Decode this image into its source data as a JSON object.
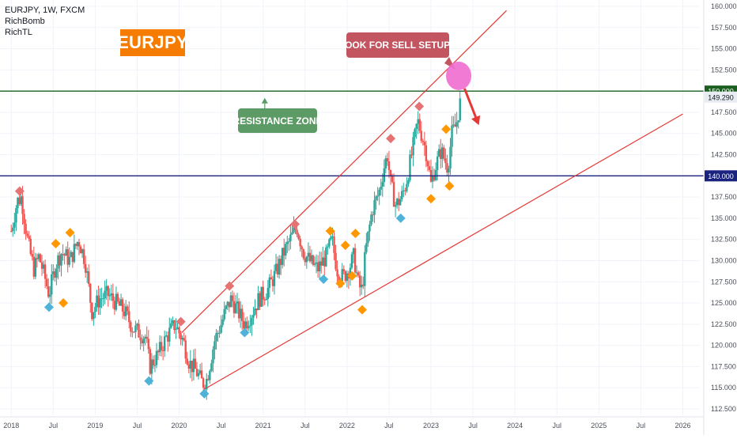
{
  "legend": {
    "symbol_line": "EURJPY, 1W, FXCM",
    "indicators": [
      "RichBomb",
      "RichTL"
    ]
  },
  "badge_title": "EURJPY",
  "callouts": {
    "sell": "LOOK FOR SELL SETUPS",
    "resistance": "RESISTANCE ZONE"
  },
  "colors": {
    "up_candle": "#26a69a",
    "down_candle": "#ef5350",
    "resistance_line": "#1b5e20",
    "support_line": "#1a237e",
    "trendline": "#e53935",
    "badge_bg": "#f57c00",
    "sell_callout": "#c2555f",
    "resistance_callout": "#5c9b65",
    "sell_zone": "#f06cd0",
    "marker_red": "#e57373",
    "marker_orange": "#ff9800",
    "marker_blue": "#4fb3d9"
  },
  "chart_data": {
    "type": "candlestick",
    "symbol": "EURJPY",
    "timeframe": "1W",
    "ylim": [
      112.5,
      160.0
    ],
    "xlim": [
      2017.96,
      2026.25
    ],
    "y_ticks": [
      "160.000",
      "157.500",
      "155.000",
      "152.500",
      "150.000",
      "147.500",
      "145.000",
      "142.500",
      "140.000",
      "137.500",
      "135.000",
      "132.500",
      "130.000",
      "127.500",
      "125.000",
      "122.500",
      "120.000",
      "117.500",
      "115.000",
      "112.500"
    ],
    "y_tick_values": [
      160,
      157.5,
      155,
      152.5,
      150,
      147.5,
      145,
      142.5,
      140,
      137.5,
      135,
      132.5,
      130,
      127.5,
      125,
      122.5,
      120,
      117.5,
      115,
      112.5
    ],
    "x_ticks": [
      {
        "t": 2018.0,
        "label": "2018"
      },
      {
        "t": 2018.5,
        "label": "Jul"
      },
      {
        "t": 2019.0,
        "label": "2019"
      },
      {
        "t": 2019.5,
        "label": "Jul"
      },
      {
        "t": 2020.0,
        "label": "2020"
      },
      {
        "t": 2020.5,
        "label": "Jul"
      },
      {
        "t": 2021.0,
        "label": "2021"
      },
      {
        "t": 2021.5,
        "label": "Jul"
      },
      {
        "t": 2022.0,
        "label": "2022"
      },
      {
        "t": 2022.5,
        "label": "Jul"
      },
      {
        "t": 2023.0,
        "label": "2023"
      },
      {
        "t": 2023.5,
        "label": "Jul"
      },
      {
        "t": 2024.0,
        "label": "2024"
      },
      {
        "t": 2024.5,
        "label": "Jul"
      },
      {
        "t": 2025.0,
        "label": "2025"
      },
      {
        "t": 2025.5,
        "label": "Jul"
      },
      {
        "t": 2026.0,
        "label": "2026"
      }
    ],
    "price_anchors": [
      [
        2018.0,
        133.5
      ],
      [
        2018.07,
        137.0
      ],
      [
        2018.12,
        137.5
      ],
      [
        2018.2,
        132.0
      ],
      [
        2018.27,
        129.0
      ],
      [
        2018.33,
        130.5
      ],
      [
        2018.4,
        128.0
      ],
      [
        2018.45,
        126.0
      ],
      [
        2018.53,
        129.5
      ],
      [
        2018.6,
        131.0
      ],
      [
        2018.7,
        130.0
      ],
      [
        2018.8,
        132.5
      ],
      [
        2018.88,
        130.0
      ],
      [
        2018.96,
        124.0
      ],
      [
        2019.05,
        125.5
      ],
      [
        2019.15,
        126.0
      ],
      [
        2019.25,
        125.0
      ],
      [
        2019.35,
        124.0
      ],
      [
        2019.45,
        122.0
      ],
      [
        2019.6,
        121.0
      ],
      [
        2019.65,
        117.5
      ],
      [
        2019.75,
        119.0
      ],
      [
        2019.85,
        121.0
      ],
      [
        2019.95,
        122.5
      ],
      [
        2020.05,
        120.5
      ],
      [
        2020.12,
        118.0
      ],
      [
        2020.2,
        117.0
      ],
      [
        2020.28,
        115.5
      ],
      [
        2020.33,
        116.0
      ],
      [
        2020.42,
        120.5
      ],
      [
        2020.5,
        122.5
      ],
      [
        2020.55,
        124.0
      ],
      [
        2020.62,
        125.5
      ],
      [
        2020.7,
        124.0
      ],
      [
        2020.78,
        122.5
      ],
      [
        2020.85,
        123.5
      ],
      [
        2020.95,
        125.5
      ],
      [
        2021.05,
        126.5
      ],
      [
        2021.15,
        128.5
      ],
      [
        2021.25,
        131.0
      ],
      [
        2021.35,
        133.0
      ],
      [
        2021.4,
        134.0
      ],
      [
        2021.48,
        131.0
      ],
      [
        2021.55,
        130.0
      ],
      [
        2021.65,
        129.0
      ],
      [
        2021.75,
        130.5
      ],
      [
        2021.82,
        132.5
      ],
      [
        2021.88,
        129.0
      ],
      [
        2021.95,
        128.0
      ],
      [
        2022.02,
        129.0
      ],
      [
        2022.08,
        130.5
      ],
      [
        2022.14,
        127.0
      ],
      [
        2022.18,
        126.5
      ],
      [
        2022.22,
        131.0
      ],
      [
        2022.3,
        136.0
      ],
      [
        2022.38,
        138.0
      ],
      [
        2022.44,
        141.0
      ],
      [
        2022.48,
        142.5
      ],
      [
        2022.52,
        139.0
      ],
      [
        2022.58,
        136.5
      ],
      [
        2022.65,
        137.5
      ],
      [
        2022.7,
        139.0
      ],
      [
        2022.78,
        143.0
      ],
      [
        2022.84,
        146.5
      ],
      [
        2022.9,
        144.5
      ],
      [
        2022.95,
        142.5
      ],
      [
        2023.0,
        139.0
      ],
      [
        2023.05,
        141.0
      ],
      [
        2023.12,
        143.0
      ],
      [
        2023.2,
        141.0
      ],
      [
        2023.25,
        145.0
      ],
      [
        2023.3,
        146.0
      ],
      [
        2023.36,
        149.3
      ]
    ],
    "levels": [
      {
        "name": "resistance",
        "value": 150.0,
        "label": "150.000"
      },
      {
        "name": "support",
        "value": 140.0,
        "label": "140.000"
      }
    ],
    "last_price": {
      "value": 149.29,
      "label": "149.290"
    },
    "trendlines": [
      {
        "name": "upper-channel",
        "from": [
          2020.03,
          121.5
        ],
        "to": [
          2023.9,
          159.5
        ]
      },
      {
        "name": "lower-channel",
        "from": [
          2020.33,
          115.0
        ],
        "to": [
          2026.0,
          147.3
        ]
      }
    ],
    "sell_zone": {
      "t": 2023.33,
      "price": 151.8
    },
    "sell_arrow": {
      "from": [
        2023.4,
        150.3
      ],
      "to": [
        2023.55,
        146.5
      ]
    },
    "resistance_pointer": {
      "t": 2021.02,
      "price": 149.2
    },
    "markers": [
      {
        "kind": "red",
        "t": 2018.1,
        "price": 138.2
      },
      {
        "kind": "blue",
        "t": 2018.45,
        "price": 124.5
      },
      {
        "kind": "orange",
        "t": 2018.53,
        "price": 132.0
      },
      {
        "kind": "orange",
        "t": 2018.62,
        "price": 125.0
      },
      {
        "kind": "orange",
        "t": 2018.7,
        "price": 133.3
      },
      {
        "kind": "blue",
        "t": 2019.64,
        "price": 115.8
      },
      {
        "kind": "red",
        "t": 2020.02,
        "price": 122.8
      },
      {
        "kind": "blue",
        "t": 2020.3,
        "price": 114.3
      },
      {
        "kind": "red",
        "t": 2020.6,
        "price": 127.0
      },
      {
        "kind": "blue",
        "t": 2020.78,
        "price": 121.5
      },
      {
        "kind": "red",
        "t": 2021.38,
        "price": 134.3
      },
      {
        "kind": "blue",
        "t": 2021.72,
        "price": 127.8
      },
      {
        "kind": "orange",
        "t": 2021.8,
        "price": 133.5
      },
      {
        "kind": "orange",
        "t": 2021.92,
        "price": 127.3
      },
      {
        "kind": "orange",
        "t": 2021.98,
        "price": 131.8
      },
      {
        "kind": "orange",
        "t": 2022.06,
        "price": 128.2
      },
      {
        "kind": "orange",
        "t": 2022.1,
        "price": 133.2
      },
      {
        "kind": "orange",
        "t": 2022.18,
        "price": 124.2
      },
      {
        "kind": "red",
        "t": 2022.52,
        "price": 144.4
      },
      {
        "kind": "blue",
        "t": 2022.64,
        "price": 135.0
      },
      {
        "kind": "red",
        "t": 2022.86,
        "price": 148.2
      },
      {
        "kind": "orange",
        "t": 2023.0,
        "price": 137.3
      },
      {
        "kind": "orange",
        "t": 2023.18,
        "price": 145.5
      },
      {
        "kind": "orange",
        "t": 2023.22,
        "price": 138.8
      }
    ]
  }
}
